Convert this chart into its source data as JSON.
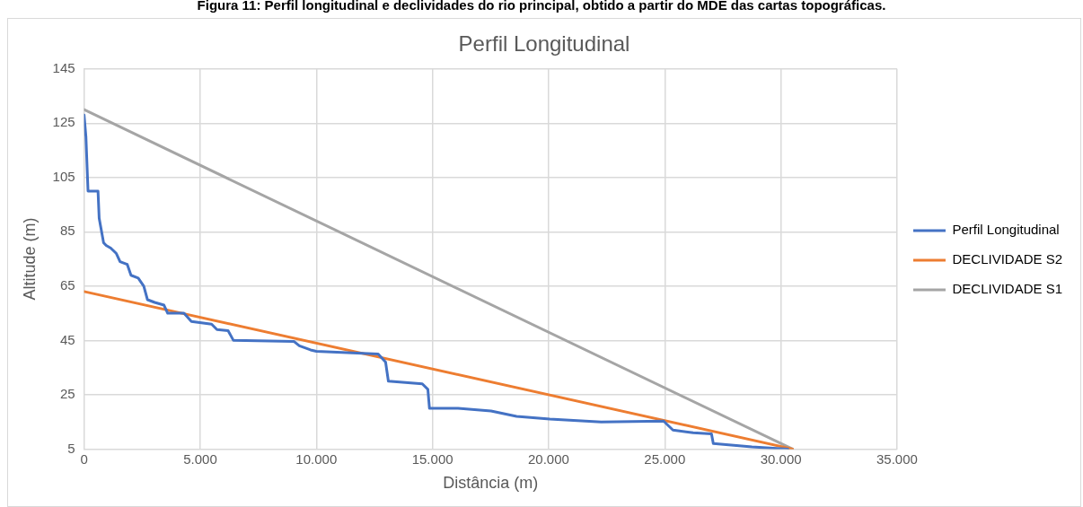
{
  "chart_data": {
    "type": "line",
    "title": "Perfil Longitudinal",
    "xlabel": "Distância (m)",
    "ylabel": "Altitude (m)",
    "annotations": [
      "Figura 11: Perfil longitudinal e declividades do rio principal, obtido a partir do MDE das cartas topográficas."
    ],
    "xlim": [
      0,
      35000
    ],
    "xticks": [
      0,
      {
        "value": 5000,
        "label": "5.000"
      },
      {
        "value": 10000,
        "label": "10.000"
      },
      {
        "value": 15000,
        "label": "15.000"
      },
      {
        "value": 20000,
        "label": "20.000"
      },
      {
        "value": 25000,
        "label": "25.000"
      },
      {
        "value": 30000,
        "label": "30.000"
      },
      {
        "value": 35000,
        "label": "35.000"
      }
    ],
    "ylim": [
      5,
      145
    ],
    "yticks": [
      5,
      25,
      45,
      65,
      85,
      105,
      125,
      145
    ],
    "grid": true,
    "legend": "right",
    "marker": "none",
    "line_style": "solid",
    "series": [
      {
        "name": "Perfil Longitudinal",
        "color": "#4472c4",
        "x": [
          0,
          80,
          170,
          600,
          650,
          840,
          950,
          1150,
          1390,
          1550,
          1860,
          2020,
          2330,
          2570,
          2730,
          3040,
          3440,
          3600,
          4300,
          4620,
          5490,
          5720,
          6200,
          6430,
          9040,
          9270,
          9750,
          10000,
          12660,
          12980,
          13100,
          14560,
          14800,
          14870,
          16100,
          17520,
          18620,
          20050,
          22260,
          24950,
          25350,
          26220,
          27010,
          27090,
          28750,
          30300
        ],
        "values": [
          128,
          120,
          100,
          100,
          90,
          81,
          80,
          79,
          77,
          74,
          73,
          69,
          68,
          65,
          60,
          59,
          58,
          55,
          55,
          52,
          51,
          49,
          48.6,
          45,
          44.6,
          43,
          41.5,
          41,
          40,
          37,
          30,
          29,
          27,
          20,
          20,
          19,
          17,
          16,
          15,
          15.3,
          12,
          11,
          10.6,
          7,
          5.8,
          5
        ]
      },
      {
        "name": "DECLIVIDADE S2",
        "color": "#ed7d31",
        "x": [
          0,
          30500
        ],
        "values": [
          63,
          5
        ]
      },
      {
        "name": "DECLIVIDADE S1",
        "color": "#a5a5a5",
        "x": [
          0,
          30500
        ],
        "values": [
          130,
          5
        ]
      }
    ]
  }
}
